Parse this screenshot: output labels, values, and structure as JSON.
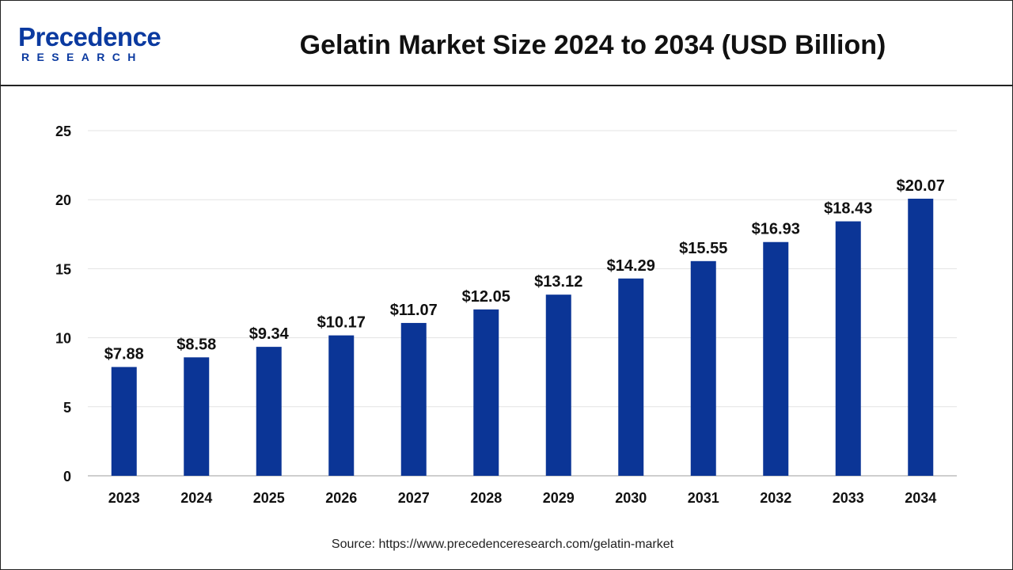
{
  "header": {
    "logo_main": "Precedence",
    "logo_sub": "RESEARCH",
    "title": "Gelatin Market Size 2024 to 2034 (USD Billion)"
  },
  "footer": {
    "source": "Source: https://www.precedenceresearch.com/gelatin-market"
  },
  "colors": {
    "bar": "#0b3596",
    "brand": "#0b3aa0",
    "grid": "#e3e3e3",
    "axis": "#bdbdbd"
  },
  "chart_data": {
    "type": "bar",
    "categories": [
      "2023",
      "2024",
      "2025",
      "2026",
      "2027",
      "2028",
      "2029",
      "2030",
      "2031",
      "2032",
      "2033",
      "2034"
    ],
    "values": [
      7.88,
      8.58,
      9.34,
      10.17,
      11.07,
      12.05,
      13.12,
      14.29,
      15.55,
      16.93,
      18.43,
      20.07
    ],
    "data_labels": [
      "$7.88",
      "$8.58",
      "$9.34",
      "$10.17",
      "$11.07",
      "$12.05",
      "$13.12",
      "$14.29",
      "$15.55",
      "$16.93",
      "$18.43",
      "$20.07"
    ],
    "title": "Gelatin Market Size 2024 to 2034 (USD Billion)",
    "xlabel": "",
    "ylabel": "",
    "ylim": [
      0,
      25
    ],
    "yticks": [
      0,
      5,
      10,
      15,
      20,
      25
    ],
    "grid": true,
    "legend": "none"
  }
}
